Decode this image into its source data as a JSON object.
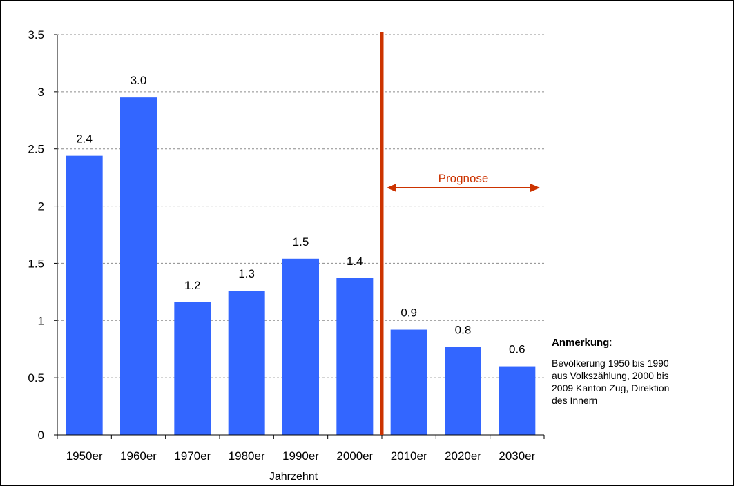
{
  "chart_data": {
    "type": "bar",
    "categories": [
      "1950er",
      "1960er",
      "1970er",
      "1980er",
      "1990er",
      "2000er",
      "2010er",
      "2020er",
      "2030er"
    ],
    "values": [
      2.44,
      2.95,
      1.16,
      1.26,
      1.54,
      1.37,
      0.92,
      0.77,
      0.6
    ],
    "data_labels": [
      "2.4",
      "3.0",
      "1.2",
      "1.3",
      "1.5",
      "1.4",
      "0.9",
      "0.8",
      "0.6"
    ],
    "y_ticks": [
      "0",
      "0.5",
      "1",
      "1.5",
      "2",
      "2.5",
      "3",
      "3.5"
    ],
    "ylim": [
      0,
      3.5
    ],
    "xlabel": "Jahrzehnt",
    "ylabel": "",
    "grid": "horizontal dashed",
    "bar_color": "#3366ff",
    "forecast_divider_color": "#cc3300",
    "forecast": {
      "label": "Prognose",
      "from_category": "2010er",
      "to_category": "2030er"
    }
  },
  "note": {
    "title": "Anmerkung",
    "title_suffix": ":",
    "text": "Bevölkerung 1950 bis 1990 aus Volkszählung, 2000 bis 2009 Kanton Zug, Direktion des Innern"
  }
}
